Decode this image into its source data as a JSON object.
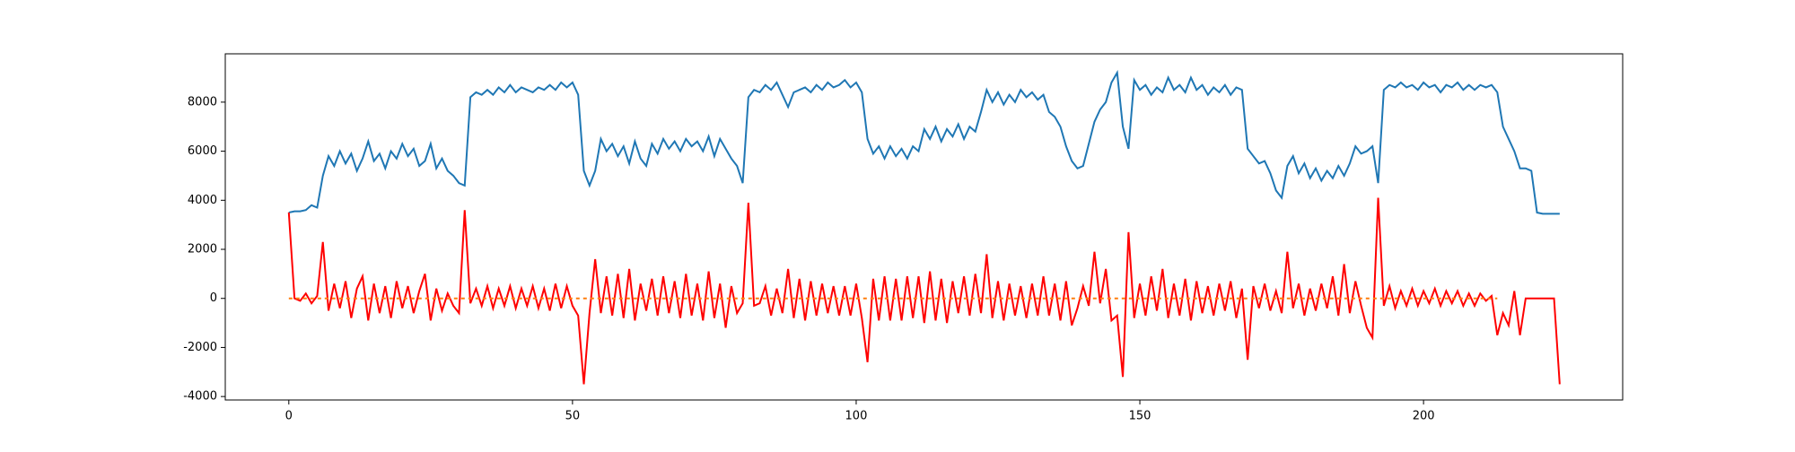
{
  "chart_data": {
    "type": "line",
    "x": [
      0,
      1,
      2,
      3,
      4,
      5,
      6,
      7,
      8,
      9,
      10,
      11,
      12,
      13,
      14,
      15,
      16,
      17,
      18,
      19,
      20,
      21,
      22,
      23,
      24,
      25,
      26,
      27,
      28,
      29,
      30,
      31,
      32,
      33,
      34,
      35,
      36,
      37,
      38,
      39,
      40,
      41,
      42,
      43,
      44,
      45,
      46,
      47,
      48,
      49,
      50,
      51,
      52,
      53,
      54,
      55,
      56,
      57,
      58,
      59,
      60,
      61,
      62,
      63,
      64,
      65,
      66,
      67,
      68,
      69,
      70,
      71,
      72,
      73,
      74,
      75,
      76,
      77,
      78,
      79,
      80,
      81,
      82,
      83,
      84,
      85,
      86,
      87,
      88,
      89,
      90,
      91,
      92,
      93,
      94,
      95,
      96,
      97,
      98,
      99,
      100,
      101,
      102,
      103,
      104,
      105,
      106,
      107,
      108,
      109,
      110,
      111,
      112,
      113,
      114,
      115,
      116,
      117,
      118,
      119,
      120,
      121,
      122,
      123,
      124,
      125,
      126,
      127,
      128,
      129,
      130,
      131,
      132,
      133,
      134,
      135,
      136,
      137,
      138,
      139,
      140,
      141,
      142,
      143,
      144,
      145,
      146,
      147,
      148,
      149,
      150,
      151,
      152,
      153,
      154,
      155,
      156,
      157,
      158,
      159,
      160,
      161,
      162,
      163,
      164,
      165,
      166,
      167,
      168,
      169,
      170,
      171,
      172,
      173,
      174,
      175,
      176,
      177,
      178,
      179,
      180,
      181,
      182,
      183,
      184,
      185,
      186,
      187,
      188,
      189,
      190,
      191,
      192,
      193,
      194,
      195,
      196,
      197,
      198,
      199,
      200,
      201,
      202,
      203,
      204,
      205,
      206,
      207,
      208,
      209,
      210,
      211,
      212,
      213,
      214,
      215,
      216,
      217,
      218,
      219,
      220,
      221,
      222,
      223,
      224
    ],
    "series": [
      {
        "color": "#1f77b4",
        "values": [
          3500,
          3550,
          3550,
          3600,
          3800,
          3700,
          5000,
          5800,
          5400,
          6000,
          5500,
          5900,
          5200,
          5700,
          6400,
          5600,
          5900,
          5300,
          6000,
          5700,
          6300,
          5800,
          6100,
          5400,
          5600,
          6300,
          5300,
          5700,
          5200,
          5000,
          4700,
          4600,
          8200,
          8400,
          8300,
          8500,
          8300,
          8600,
          8400,
          8700,
          8400,
          8600,
          8500,
          8400,
          8600,
          8500,
          8700,
          8500,
          8800,
          8600,
          8800,
          8300,
          5200,
          4600,
          5200,
          6500,
          6000,
          6300,
          5800,
          6200,
          5500,
          6400,
          5700,
          5400,
          6300,
          5900,
          6500,
          6100,
          6400,
          6000,
          6500,
          6200,
          6400,
          6000,
          6600,
          5800,
          6500,
          6100,
          5700,
          5400,
          4700,
          8200,
          8500,
          8400,
          8700,
          8500,
          8800,
          8300,
          7800,
          8400,
          8500,
          8600,
          8400,
          8700,
          8500,
          8800,
          8600,
          8700,
          8900,
          8600,
          8800,
          8400,
          6500,
          5900,
          6200,
          5700,
          6200,
          5800,
          6100,
          5700,
          6200,
          6000,
          6900,
          6500,
          7000,
          6400,
          6900,
          6600,
          7100,
          6500,
          7000,
          6800,
          7600,
          8500,
          8000,
          8400,
          7900,
          8300,
          8000,
          8500,
          8200,
          8400,
          8100,
          8300,
          7600,
          7400,
          7000,
          6200,
          5600,
          5300,
          5400,
          6300,
          7200,
          7700,
          8000,
          8800,
          9200,
          7000,
          6100,
          8900,
          8500,
          8700,
          8300,
          8600,
          8400,
          9000,
          8500,
          8700,
          8400,
          9000,
          8500,
          8700,
          8300,
          8600,
          8400,
          8700,
          8300,
          8600,
          8500,
          6100,
          5800,
          5500,
          5600,
          5100,
          4400,
          4100,
          5400,
          5800,
          5100,
          5500,
          4900,
          5300,
          4800,
          5200,
          4900,
          5400,
          5000,
          5500,
          6200,
          5900,
          6000,
          6200,
          4700,
          8500,
          8700,
          8600,
          8800,
          8600,
          8700,
          8500,
          8800,
          8600,
          8700,
          8400,
          8700,
          8600,
          8800,
          8500,
          8700,
          8500,
          8700,
          8600,
          8700,
          8400,
          7000,
          6500,
          6000,
          5300,
          5300,
          5200,
          3500,
          3450,
          3450,
          3450,
          3450
        ]
      },
      {
        "color": "#ff0000",
        "values": [
          3500,
          0,
          -100,
          200,
          -200,
          100,
          2300,
          -500,
          600,
          -400,
          700,
          -800,
          400,
          900,
          -900,
          600,
          -600,
          500,
          -800,
          700,
          -400,
          500,
          -600,
          300,
          1000,
          -900,
          400,
          -500,
          200,
          -300,
          -600,
          3600,
          -200,
          400,
          -300,
          500,
          -400,
          400,
          -300,
          500,
          -400,
          400,
          -300,
          500,
          -400,
          400,
          -500,
          600,
          -400,
          500,
          -300,
          -700,
          -3500,
          -600,
          1600,
          -600,
          900,
          -700,
          1000,
          -800,
          1200,
          -900,
          600,
          -500,
          800,
          -700,
          900,
          -600,
          700,
          -800,
          1000,
          -700,
          600,
          -900,
          1100,
          -800,
          600,
          -1200,
          500,
          -600,
          -200,
          3900,
          -300,
          -200,
          500,
          -700,
          400,
          -600,
          1200,
          -800,
          800,
          -900,
          700,
          -700,
          600,
          -600,
          500,
          -700,
          500,
          -700,
          600,
          -800,
          -2600,
          800,
          -900,
          900,
          -900,
          800,
          -900,
          900,
          -800,
          900,
          -1000,
          1100,
          -900,
          800,
          -1000,
          700,
          -600,
          900,
          -700,
          1000,
          -600,
          1800,
          -800,
          700,
          -900,
          600,
          -700,
          500,
          -800,
          600,
          -700,
          900,
          -700,
          600,
          -900,
          700,
          -1100,
          -400,
          500,
          -300,
          1900,
          -200,
          1200,
          -900,
          -700,
          -3200,
          2700,
          -800,
          600,
          -700,
          900,
          -500,
          1200,
          -800,
          600,
          -700,
          800,
          -900,
          700,
          -600,
          500,
          -700,
          600,
          -500,
          700,
          -800,
          400,
          -2500,
          500,
          -400,
          600,
          -500,
          300,
          -600,
          1900,
          -400,
          600,
          -700,
          400,
          -500,
          600,
          -400,
          900,
          -700,
          1400,
          -600,
          700,
          -300,
          -1200,
          -1600,
          4100,
          -300,
          500,
          -400,
          300,
          -300,
          400,
          -300,
          300,
          -200,
          400,
          -300,
          300,
          -200,
          300,
          -300,
          200,
          -300,
          200,
          -100,
          100,
          -1500,
          -600,
          -1100,
          300,
          -1500,
          0,
          0,
          0,
          0,
          0,
          0,
          -3500
        ]
      },
      {
        "color": "#ff7f0e",
        "dashed": true,
        "x": [
          0,
          213
        ],
        "values": [
          0,
          0
        ]
      }
    ],
    "xlim": [
      -11.2,
      235.1
    ],
    "ylim": [
      -4141,
      9970
    ],
    "xticks": [
      0,
      50,
      100,
      150,
      200
    ],
    "yticks": [
      -4000,
      -2000,
      0,
      2000,
      4000,
      6000,
      8000
    ]
  }
}
